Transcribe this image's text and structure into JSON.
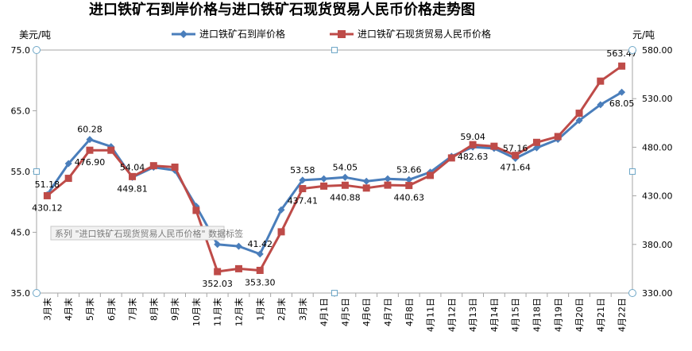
{
  "chart_data": {
    "type": "line",
    "title": "进口铁矿石到岸价格与进口铁矿石现货贸易人民币价格走势图",
    "left_unit": "美元/吨",
    "right_unit": "元/吨",
    "ylim_left": [
      35.0,
      75.0
    ],
    "yticks_left": [
      "35.0",
      "45.0",
      "55.0",
      "65.0",
      "75.0"
    ],
    "ylim_right": [
      330.0,
      580.0
    ],
    "yticks_right": [
      "330.00",
      "380.00",
      "430.00",
      "480.00",
      "530.00",
      "580.00"
    ],
    "categories": [
      "3月末",
      "4月末",
      "5月末",
      "6月末",
      "7月末",
      "8月末",
      "9月末",
      "10月末",
      "11月末",
      "12月末",
      "1月末",
      "2月末",
      "3月末",
      "4月1日",
      "4月5日",
      "4月6日",
      "4月7日",
      "4月8日",
      "4月11日",
      "4月12日",
      "4月13日",
      "4月14日",
      "4月15日",
      "4月18日",
      "4月19日",
      "4月20日",
      "4月21日",
      "4月22日"
    ],
    "legend_position": "top",
    "series": [
      {
        "name": "进口铁矿石到岸价格",
        "axis": "left",
        "color": "#4a7ebb",
        "marker": "diamond",
        "values": [
          51.18,
          56.3,
          60.28,
          59.1,
          54.04,
          55.7,
          55.2,
          49.3,
          43.0,
          42.7,
          41.42,
          48.7,
          53.58,
          53.8,
          54.05,
          53.4,
          53.8,
          53.66,
          54.9,
          57.5,
          59.04,
          58.8,
          57.16,
          58.9,
          60.3,
          63.4,
          66.0,
          68.05
        ]
      },
      {
        "name": "进口铁矿石现货贸易人民币价格",
        "axis": "right",
        "color": "#be4b48",
        "marker": "square",
        "values": [
          430.12,
          448.0,
          476.9,
          476.9,
          449.81,
          461.0,
          459.5,
          415.0,
          352.03,
          355.0,
          353.3,
          393.0,
          437.41,
          440.0,
          440.88,
          438.0,
          441.0,
          440.63,
          451.0,
          469.0,
          482.63,
          481.0,
          471.64,
          485.0,
          491.0,
          515.0,
          548.0,
          563.47
        ]
      }
    ],
    "data_labels": [
      {
        "series": 0,
        "index": 0,
        "text": "51.18"
      },
      {
        "series": 0,
        "index": 2,
        "text": "60.28"
      },
      {
        "series": 0,
        "index": 4,
        "text": "54.04"
      },
      {
        "series": 0,
        "index": 10,
        "text": "41.42"
      },
      {
        "series": 0,
        "index": 12,
        "text": "53.58"
      },
      {
        "series": 0,
        "index": 14,
        "text": "54.05"
      },
      {
        "series": 0,
        "index": 17,
        "text": "53.66"
      },
      {
        "series": 0,
        "index": 20,
        "text": "59.04"
      },
      {
        "series": 0,
        "index": 22,
        "text": "57.16"
      },
      {
        "series": 0,
        "index": 27,
        "text": "68.05"
      },
      {
        "series": 1,
        "index": 0,
        "text": "430.12"
      },
      {
        "series": 1,
        "index": 2,
        "text": "476.90"
      },
      {
        "series": 1,
        "index": 4,
        "text": "449.81"
      },
      {
        "series": 1,
        "index": 8,
        "text": "352.03"
      },
      {
        "series": 1,
        "index": 10,
        "text": "353.30"
      },
      {
        "series": 1,
        "index": 12,
        "text": "437.41"
      },
      {
        "series": 1,
        "index": 14,
        "text": "440.88"
      },
      {
        "series": 1,
        "index": 17,
        "text": "440.63"
      },
      {
        "series": 1,
        "index": 20,
        "text": "482.63"
      },
      {
        "series": 1,
        "index": 22,
        "text": "471.64"
      },
      {
        "series": 1,
        "index": 27,
        "text": "563.47"
      }
    ],
    "grid": false
  },
  "tooltip": {
    "text": "系列 \"进口铁矿石现货贸易人民币价格\" 数据标签"
  },
  "colors": {
    "plot_border": "#a6a6a6",
    "handle_fill": "#ffffff",
    "handle_stroke": "#6fa8c8",
    "tooltip_bg": "#f2f2f2",
    "tooltip_border": "#c8c8c8"
  }
}
